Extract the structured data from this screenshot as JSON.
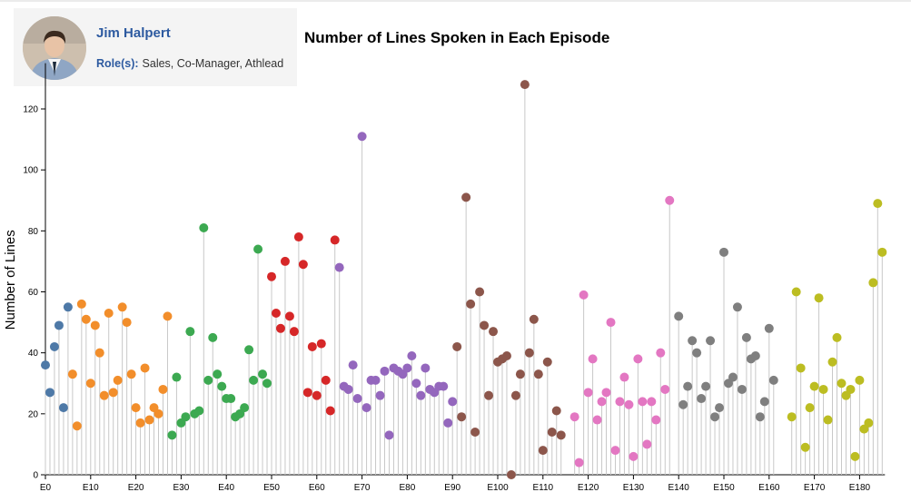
{
  "header": {
    "name": "Jim Halpert",
    "roles_label": "Role(s):",
    "roles": "Sales, Co-Manager, Athlead"
  },
  "chart_data": {
    "type": "lollipop",
    "title": "Number of Lines Spoken in Each Episode",
    "ylabel": "Number of Lines",
    "xlabel": "",
    "ylim": [
      0,
      135
    ],
    "yticks": [
      0,
      20,
      40,
      60,
      80,
      100,
      120
    ],
    "xtick_labels": [
      "E0",
      "E10",
      "E20",
      "E30",
      "E40",
      "E50",
      "E60",
      "E70",
      "E80",
      "E90",
      "E100",
      "E110",
      "E120",
      "E130",
      "E140",
      "E150",
      "E160",
      "E170",
      "E180"
    ],
    "grid": false,
    "season_colors": [
      "#4e79a7",
      "#f28e2b",
      "#3ca951",
      "#d62728",
      "#9467bd",
      "#8c564b",
      "#e377c2",
      "#7f7f7f",
      "#bcbd22"
    ],
    "series": [
      {
        "start": 0,
        "values": [
          36,
          27,
          42,
          49,
          22,
          55
        ]
      },
      {
        "start": 6,
        "values": [
          33,
          16,
          56,
          51,
          30,
          49,
          40,
          26,
          53,
          27,
          31,
          55,
          50,
          33,
          22,
          17,
          35,
          18,
          22,
          20,
          28,
          52
        ]
      },
      {
        "start": 28,
        "values": [
          13,
          32,
          17,
          19,
          47,
          20,
          21,
          81,
          31,
          45,
          33,
          29,
          25,
          25,
          19,
          20,
          22,
          41,
          31,
          74,
          33,
          30
        ]
      },
      {
        "start": 50,
        "values": [
          65,
          53,
          48,
          70,
          52,
          47,
          78,
          69,
          27,
          42,
          26,
          43,
          31,
          21,
          77
        ]
      },
      {
        "start": 65,
        "values": [
          68,
          29,
          28,
          36,
          25,
          111,
          22,
          31,
          31,
          26,
          34,
          13,
          35,
          34,
          33,
          35,
          39,
          30,
          26,
          35,
          28,
          27,
          29,
          29,
          17,
          24
        ]
      },
      {
        "start": 91,
        "values": [
          42,
          19,
          91,
          56,
          14,
          60,
          49,
          26,
          47,
          37,
          38,
          39,
          0,
          26,
          33,
          128,
          40,
          51,
          33,
          8,
          37,
          14,
          21,
          13
        ]
      },
      {
        "start": 117,
        "values": [
          19,
          4,
          59,
          27,
          38,
          18,
          24,
          27,
          50,
          8,
          24,
          32,
          23,
          6,
          38,
          24,
          10,
          24,
          18,
          40,
          28,
          90
        ]
      },
      {
        "start": 140,
        "values": [
          52,
          23,
          29,
          44,
          40,
          25,
          29,
          44,
          19,
          22,
          73,
          30,
          32,
          55,
          28,
          45,
          38,
          39,
          19,
          24,
          48,
          31
        ]
      },
      {
        "start": 165,
        "values": [
          19,
          60,
          35,
          9,
          22,
          29,
          58,
          28,
          18,
          37,
          45,
          30,
          26,
          28,
          6,
          31,
          15,
          17,
          63,
          89,
          73
        ]
      }
    ]
  }
}
